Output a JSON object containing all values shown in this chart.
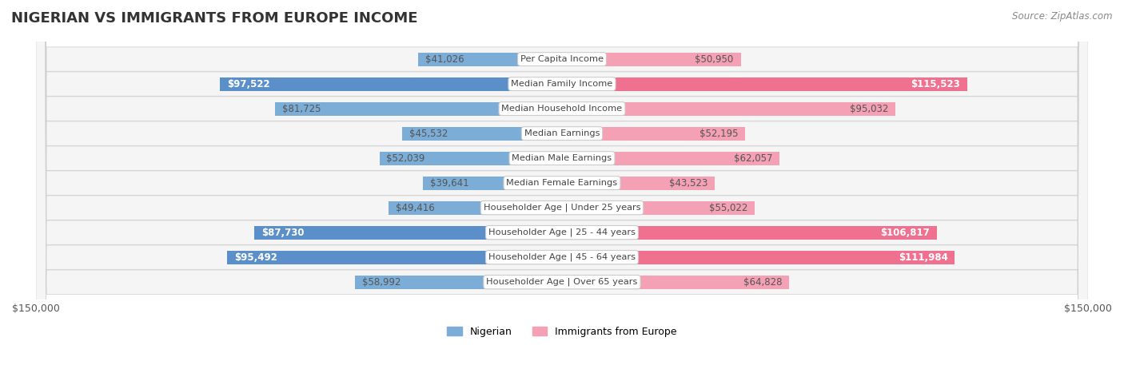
{
  "title": "NIGERIAN VS IMMIGRANTS FROM EUROPE INCOME",
  "source": "Source: ZipAtlas.com",
  "categories": [
    "Per Capita Income",
    "Median Family Income",
    "Median Household Income",
    "Median Earnings",
    "Median Male Earnings",
    "Median Female Earnings",
    "Householder Age | Under 25 years",
    "Householder Age | 25 - 44 years",
    "Householder Age | 45 - 64 years",
    "Householder Age | Over 65 years"
  ],
  "nigerian_values": [
    41026,
    97522,
    81725,
    45532,
    52039,
    39641,
    49416,
    87730,
    95492,
    58992
  ],
  "europe_values": [
    50950,
    115523,
    95032,
    52195,
    62057,
    43523,
    55022,
    106817,
    111984,
    64828
  ],
  "nigerian_color": "#7badd6",
  "europe_color": "#f4a0b5",
  "nigerian_color_highlight": "#5b8fc9",
  "europe_color_highlight": "#f07090",
  "bar_bg_color": "#f0f0f0",
  "row_bg_color": "#f5f5f5",
  "max_value": 150000,
  "xlabel_left": "$150,000",
  "xlabel_right": "$150,000",
  "legend_nigerian": "Nigerian",
  "legend_europe": "Immigrants from Europe",
  "label_fontsize": 9,
  "title_fontsize": 13,
  "nigerian_label_format": "${:,}",
  "europe_label_format": "${:,}"
}
